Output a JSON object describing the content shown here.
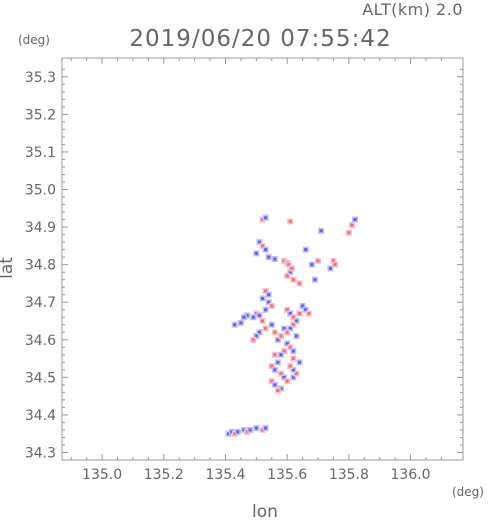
{
  "header": {
    "altitude_label": "ALT(km) 2.0",
    "timestamp": "2019/06/20 07:55:42"
  },
  "chart_data": {
    "type": "scatter",
    "title": "2019/06/20 07:55:42",
    "xlabel": "lon",
    "ylabel": "lat",
    "xunit": "(deg)",
    "yunit": "(deg)",
    "xlim": [
      134.87,
      136.17
    ],
    "ylim": [
      34.28,
      35.35
    ],
    "xticks": [
      "135.0",
      "135.2",
      "135.4",
      "135.6",
      "135.8",
      "136.0"
    ],
    "xtick_values": [
      135.0,
      135.2,
      135.4,
      135.6,
      135.8,
      136.0
    ],
    "yticks": [
      "34.3",
      "34.4",
      "34.5",
      "34.6",
      "34.7",
      "34.8",
      "34.9",
      "35.0",
      "35.1",
      "35.2",
      "35.3"
    ],
    "ytick_values": [
      34.3,
      34.4,
      34.5,
      34.6,
      34.7,
      34.8,
      34.9,
      35.0,
      35.1,
      35.2,
      35.3
    ],
    "grid": false,
    "colors": {
      "positive": "#f07080",
      "negative": "#6060f0",
      "positive_light": "#f8c0c8",
      "negative_light": "#c0c0f8",
      "axis": "#999999"
    },
    "series": [
      {
        "values": [
          [
            135.52,
            34.92,
            1
          ],
          [
            135.53,
            34.925,
            -1
          ],
          [
            135.61,
            34.915,
            1
          ],
          [
            135.82,
            34.92,
            -1
          ],
          [
            135.81,
            34.905,
            1
          ],
          [
            135.8,
            34.885,
            1
          ],
          [
            135.71,
            34.89,
            -1
          ],
          [
            135.51,
            34.86,
            -1
          ],
          [
            135.52,
            34.85,
            1
          ],
          [
            135.53,
            34.84,
            -1
          ],
          [
            135.54,
            34.82,
            -1
          ],
          [
            135.5,
            34.83,
            -1
          ],
          [
            135.56,
            34.815,
            -1
          ],
          [
            135.59,
            34.81,
            1
          ],
          [
            135.6,
            34.805,
            1
          ],
          [
            135.605,
            34.8,
            1
          ],
          [
            135.61,
            34.78,
            -1
          ],
          [
            135.6,
            34.77,
            1
          ],
          [
            135.615,
            34.79,
            1
          ],
          [
            135.66,
            34.84,
            -1
          ],
          [
            135.68,
            34.8,
            -1
          ],
          [
            135.69,
            34.76,
            -1
          ],
          [
            135.7,
            34.81,
            1
          ],
          [
            135.75,
            34.81,
            1
          ],
          [
            135.755,
            34.8,
            1
          ],
          [
            135.74,
            34.79,
            -1
          ],
          [
            135.62,
            34.76,
            1
          ],
          [
            135.64,
            34.75,
            1
          ],
          [
            135.53,
            34.73,
            1
          ],
          [
            135.54,
            34.72,
            -1
          ],
          [
            135.52,
            34.71,
            -1
          ],
          [
            135.54,
            34.7,
            -1
          ],
          [
            135.55,
            34.69,
            1
          ],
          [
            135.53,
            34.68,
            -1
          ],
          [
            135.5,
            34.67,
            1
          ],
          [
            135.51,
            34.665,
            -1
          ],
          [
            135.49,
            34.66,
            -1
          ],
          [
            135.47,
            34.665,
            -1
          ],
          [
            135.46,
            34.66,
            -1
          ],
          [
            135.45,
            34.645,
            -1
          ],
          [
            135.43,
            34.64,
            -1
          ],
          [
            135.52,
            34.65,
            1
          ],
          [
            135.53,
            34.63,
            1
          ],
          [
            135.51,
            34.62,
            -1
          ],
          [
            135.5,
            34.61,
            -1
          ],
          [
            135.49,
            34.6,
            1
          ],
          [
            135.55,
            34.64,
            -1
          ],
          [
            135.56,
            34.62,
            1
          ],
          [
            135.57,
            34.6,
            -1
          ],
          [
            135.58,
            34.61,
            1
          ],
          [
            135.59,
            34.63,
            -1
          ],
          [
            135.6,
            34.68,
            1
          ],
          [
            135.61,
            34.67,
            -1
          ],
          [
            135.62,
            34.66,
            1
          ],
          [
            135.63,
            34.65,
            -1
          ],
          [
            135.64,
            34.67,
            1
          ],
          [
            135.65,
            34.69,
            -1
          ],
          [
            135.66,
            34.68,
            -1
          ],
          [
            135.67,
            34.67,
            1
          ],
          [
            135.62,
            34.64,
            1
          ],
          [
            135.61,
            34.63,
            -1
          ],
          [
            135.6,
            34.62,
            1
          ],
          [
            135.63,
            34.61,
            -1
          ],
          [
            135.6,
            34.59,
            -1
          ],
          [
            135.61,
            34.58,
            1
          ],
          [
            135.62,
            34.57,
            -1
          ],
          [
            135.59,
            34.57,
            1
          ],
          [
            135.58,
            34.56,
            -1
          ],
          [
            135.56,
            34.56,
            1
          ],
          [
            135.57,
            34.54,
            -1
          ],
          [
            135.55,
            34.53,
            1
          ],
          [
            135.56,
            34.52,
            -1
          ],
          [
            135.58,
            34.51,
            1
          ],
          [
            135.59,
            34.5,
            -1
          ],
          [
            135.6,
            34.49,
            1
          ],
          [
            135.62,
            34.5,
            -1
          ],
          [
            135.63,
            34.51,
            1
          ],
          [
            135.62,
            34.52,
            -1
          ],
          [
            135.55,
            34.49,
            1
          ],
          [
            135.56,
            34.48,
            -1
          ],
          [
            135.58,
            34.47,
            -1
          ],
          [
            135.57,
            34.465,
            1
          ],
          [
            135.61,
            34.53,
            1
          ],
          [
            135.64,
            34.54,
            -1
          ],
          [
            135.62,
            34.55,
            1
          ],
          [
            135.41,
            34.35,
            -1
          ],
          [
            135.42,
            34.355,
            -1
          ],
          [
            135.43,
            34.35,
            1
          ],
          [
            135.44,
            34.355,
            -1
          ],
          [
            135.46,
            34.36,
            -1
          ],
          [
            135.47,
            34.355,
            1
          ],
          [
            135.48,
            34.36,
            -1
          ],
          [
            135.5,
            34.365,
            -1
          ],
          [
            135.52,
            34.36,
            1
          ],
          [
            135.53,
            34.365,
            -1
          ]
        ]
      }
    ]
  }
}
